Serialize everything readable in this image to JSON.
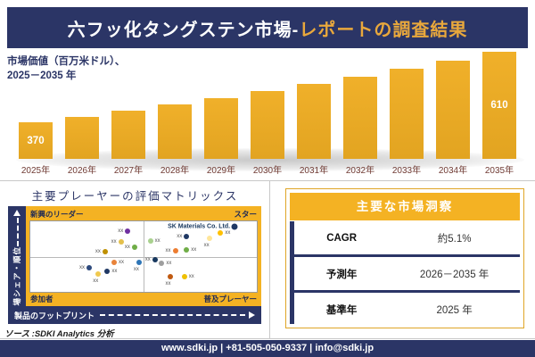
{
  "header": {
    "title_main": "六フッ化タングステン市場-",
    "title_accent": "レポートの調査結果"
  },
  "bar_section": {
    "label_line1": "市場価値（百万米ドル）、",
    "label_line2": "2025－2035 年"
  },
  "chart_data": [
    {
      "type": "bar",
      "title": "市場価値（百万米ドル）、2025－2035 年",
      "xlabel": "年",
      "ylabel": "市場価値（百万米ドル）",
      "categories": [
        "2025年",
        "2026年",
        "2027年",
        "2028年",
        "2029年",
        "2030年",
        "2031年",
        "2032年",
        "2033年",
        "2034年",
        "2035年"
      ],
      "values": [
        370,
        389,
        409,
        430,
        452,
        475,
        499,
        524,
        551,
        579,
        610
      ],
      "value_labels_shown": {
        "2025年": "370",
        "2035年": "610"
      },
      "values_estimated_from_cagr": "約5.1%",
      "bar_color": "#E8A826",
      "grid": false,
      "legend": false
    },
    {
      "type": "scatter",
      "title": "主要プレーヤーの評価マトリックス",
      "xlabel": "製品のフットプリント",
      "ylabel": "市場シェア・順位",
      "quadrant_labels": {
        "top_left": "新興のリーダー",
        "top_right": "スター",
        "bottom_left": "参加者",
        "bottom_right": "普及プレーヤー"
      },
      "points": [
        {
          "x": 43,
          "y": 14,
          "color": "#7030A0",
          "label": "xx",
          "side": "left"
        },
        {
          "x": 40,
          "y": 29,
          "color": "#E4C04C",
          "label": "xx",
          "side": "left"
        },
        {
          "x": 46,
          "y": 37,
          "color": "#6FAD47",
          "label": "xx",
          "side": "left"
        },
        {
          "x": 33,
          "y": 43,
          "color": "#BF9000",
          "label": "xx",
          "side": "left"
        },
        {
          "x": 53,
          "y": 28,
          "color": "#A9D18E",
          "label": "xx",
          "side": "right"
        },
        {
          "x": 69,
          "y": 22,
          "color": "#1F3864",
          "label": "xx",
          "side": "left"
        },
        {
          "x": 79,
          "y": 24,
          "color": "#FFE699",
          "label": "xx",
          "side": "below"
        },
        {
          "x": 84,
          "y": 17,
          "color": "#FFC000",
          "label": "xx",
          "side": "right"
        },
        {
          "x": 90,
          "y": 7,
          "color": "#1F3864",
          "label": "SK Materials Co. Ltd.",
          "side": "left",
          "style": "company",
          "size": 7
        },
        {
          "x": 64,
          "y": 42,
          "color": "#ED7D31",
          "label": "xx",
          "side": "left"
        },
        {
          "x": 69,
          "y": 40,
          "color": "#70AD47",
          "label": "xx",
          "side": "right"
        },
        {
          "x": 26,
          "y": 66,
          "color": "#2E4A7D",
          "label": "xx",
          "side": "left"
        },
        {
          "x": 37,
          "y": 58,
          "color": "#E8833A",
          "label": "xx",
          "side": "right"
        },
        {
          "x": 34,
          "y": 71,
          "color": "#203864",
          "label": "xx",
          "side": "right"
        },
        {
          "x": 30,
          "y": 75,
          "color": "#F0C94F",
          "label": "xx",
          "side": "below"
        },
        {
          "x": 48,
          "y": 58,
          "color": "#2E75B6",
          "label": "xx",
          "side": "below"
        },
        {
          "x": 55,
          "y": 55,
          "color": "#17375E",
          "label": "xx",
          "side": "left"
        },
        {
          "x": 58,
          "y": 59,
          "color": "#9E9E9E",
          "label": "xx",
          "side": "right"
        },
        {
          "x": 62,
          "y": 79,
          "color": "#C05A11",
          "label": "xx",
          "side": "below"
        },
        {
          "x": 68,
          "y": 78,
          "color": "#EFC000",
          "label": "xx",
          "side": "right"
        }
      ],
      "legend": false
    }
  ],
  "insights": {
    "title": "主要な市場洞察",
    "rows": [
      {
        "label": "CAGR",
        "value": "約5.1%"
      },
      {
        "label": "予測年",
        "value": "2026－2035 年"
      },
      {
        "label": "基準年",
        "value": "2025 年"
      }
    ]
  },
  "source": "ソース :SDKI Analytics 分析",
  "footer": {
    "contact": "www.sdki.jp | +81-505-050-9337 | info@sdki.jp"
  },
  "colors": {
    "navy": "#2B3566",
    "gold": "#F4B223",
    "gold_text": "#E9A83C",
    "bar_gold": "#E8A826",
    "year_label": "#6F3A33"
  }
}
